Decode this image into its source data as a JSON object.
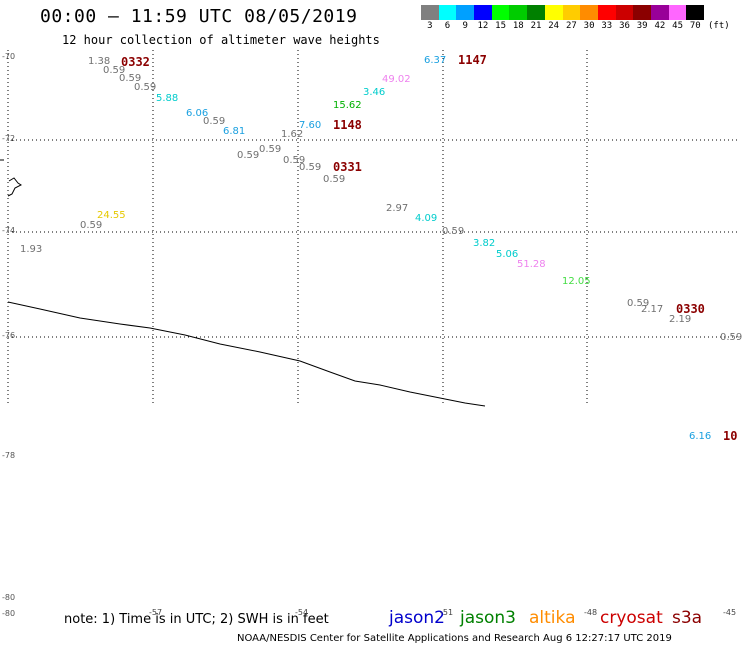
{
  "header": {
    "title": "00:00 – 11:59 UTC 08/05/2019",
    "subtitle": "12 hour collection of altimeter wave heights"
  },
  "legend": {
    "colors": [
      "#808080",
      "#00ffff",
      "#00a0ff",
      "#0000ff",
      "#00ff00",
      "#00cc00",
      "#008000",
      "#ffff00",
      "#ffcc00",
      "#ff8c00",
      "#ff0000",
      "#cc0000",
      "#8b0000",
      "#990099",
      "#ff66ff",
      "#000000"
    ],
    "labels": [
      "3",
      "6",
      "9",
      "12",
      "15",
      "18",
      "21",
      "24",
      "27",
      "30",
      "33",
      "36",
      "39",
      "42",
      "45",
      "70"
    ],
    "unit": "(ft)"
  },
  "map": {
    "lat_labels": [
      "-70",
      "-72",
      "-74",
      "-76",
      "-78",
      "-80"
    ],
    "lon_labels": [
      "-57",
      "-54",
      "-51",
      "-48",
      "-45"
    ],
    "wave_labels": [
      {
        "text": "1.38",
        "color": "#707070"
      },
      {
        "text": "0.59",
        "color": "#707070"
      },
      {
        "text": "0.59",
        "color": "#707070"
      },
      {
        "text": "0.59",
        "color": "#707070"
      },
      {
        "text": "5.88",
        "color": "#00cccc"
      },
      {
        "text": "6.06",
        "color": "#1aa0e0"
      },
      {
        "text": "0.59",
        "color": "#707070"
      },
      {
        "text": "6.81",
        "color": "#1aa0e0"
      },
      {
        "text": "1.62",
        "color": "#707070"
      },
      {
        "text": "7.60",
        "color": "#1aa0e0"
      },
      {
        "text": "0.59",
        "color": "#707070"
      },
      {
        "text": "0.59",
        "color": "#707070"
      },
      {
        "text": "0.59",
        "color": "#707070"
      },
      {
        "text": "0.59",
        "color": "#707070"
      },
      {
        "text": "0.59",
        "color": "#707070"
      },
      {
        "text": "6.37",
        "color": "#1aa0e0"
      },
      {
        "text": "49.02",
        "color": "#ee82ee"
      },
      {
        "text": "3.46",
        "color": "#00cccc"
      },
      {
        "text": "15.62",
        "color": "#00b000"
      },
      {
        "text": "2.97",
        "color": "#707070"
      },
      {
        "text": "4.09",
        "color": "#00cccc"
      },
      {
        "text": "0.59",
        "color": "#707070"
      },
      {
        "text": "3.82",
        "color": "#00cccc"
      },
      {
        "text": "5.06",
        "color": "#00cccc"
      },
      {
        "text": "51.28",
        "color": "#ee82ee"
      },
      {
        "text": "12.05",
        "color": "#44dd44"
      },
      {
        "text": "24.55",
        "color": "#e6c800"
      },
      {
        "text": "0.59",
        "color": "#707070"
      },
      {
        "text": "1.93",
        "color": "#707070"
      },
      {
        "text": "0.59",
        "color": "#707070"
      },
      {
        "text": "2.17",
        "color": "#707070"
      },
      {
        "text": "2.19",
        "color": "#707070"
      },
      {
        "text": "0.59",
        "color": "#707070"
      },
      {
        "text": "6.16",
        "color": "#1aa0e0"
      }
    ],
    "time_labels": [
      "0332",
      "1147",
      "1148",
      "0331",
      "0330",
      "10"
    ]
  },
  "footer": {
    "note": "note: 1) Time is in UTC; 2) SWH is in feet",
    "satellites": [
      {
        "name": "jason2",
        "color": "#0000cc"
      },
      {
        "name": "jason3",
        "color": "#008000"
      },
      {
        "name": "altika",
        "color": "#ff8c00"
      },
      {
        "name": "cryosat",
        "color": "#cc0000"
      },
      {
        "name": "s3a",
        "color": "#8b0000"
      }
    ],
    "credit": "NOAA/NESDIS Center for Satellite Applications and Research     Aug  6 12:27:17 UTC 2019"
  }
}
